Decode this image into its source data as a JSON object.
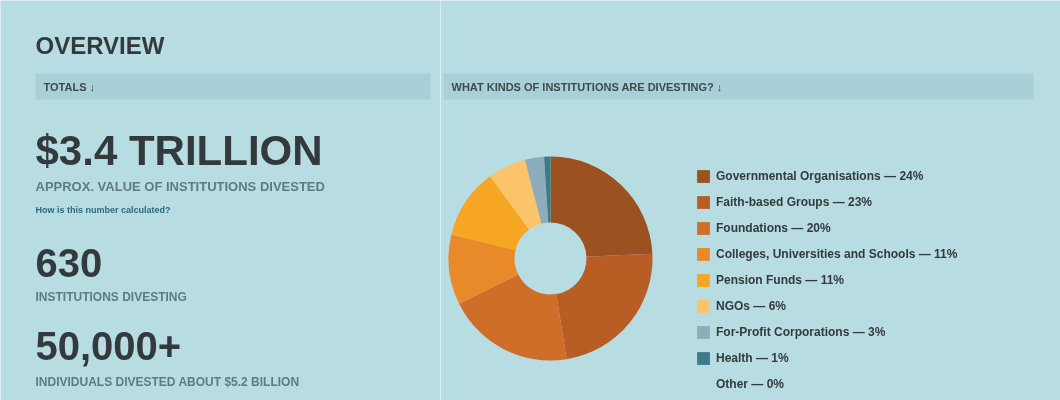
{
  "chart_data": [
    {
      "type": "other",
      "title": "OVERVIEW",
      "subtitle": "TOTALS ↓",
      "annotations": [
        "$3.4 TRILLION",
        "APPROX. VALUE OF INSTITUTIONS DIVESTED",
        "How is this number calculated?",
        "630",
        "INSTITUTIONS DIVESTING",
        "50,000+",
        "INDIVIDUALS DIVESTED ABOUT $5.2 BILLION"
      ]
    },
    {
      "type": "donut",
      "title": "WHAT KINDS OF INSTITUTIONS ARE DIVESTING? ↓",
      "categories": [
        "Governmental Organisations — 24%",
        "Faith-based Groups — 23%",
        "Foundations — 20%",
        "Colleges, Universities and Schools — 11%",
        "Pension Funds — 11%",
        "NGOs — 6%",
        "For-Profit Corporations — 3%",
        "Health — 1%",
        "Other — 0%"
      ],
      "values": [
        24,
        23,
        20,
        11,
        11,
        6,
        3,
        1,
        0
      ],
      "colors": [
        "#9b5120",
        "#b85d24",
        "#cf6e28",
        "#e8892a",
        "#f6a623",
        "#fcc46a",
        "#8eacb9",
        "#3d7a8a",
        "#2f3a40"
      ],
      "legend": "right"
    }
  ]
}
